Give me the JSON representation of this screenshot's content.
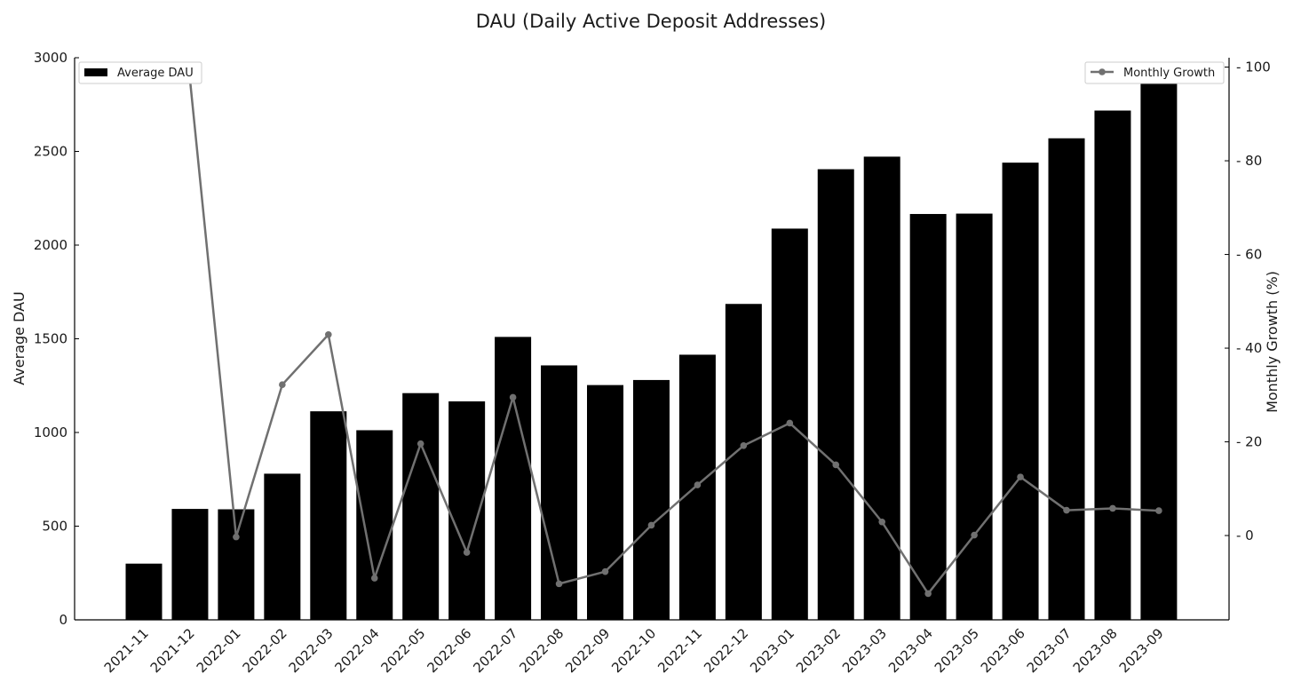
{
  "chart_data": {
    "type": "bar",
    "title": "DAU (Daily Active Deposit Addresses)",
    "categories": [
      "2021-11",
      "2021-12",
      "2022-01",
      "2022-02",
      "2022-03",
      "2022-04",
      "2022-05",
      "2022-06",
      "2022-07",
      "2022-08",
      "2022-09",
      "2022-10",
      "2022-11",
      "2022-12",
      "2023-01",
      "2023-02",
      "2023-03",
      "2023-04",
      "2023-05",
      "2023-06",
      "2023-07",
      "2023-08",
      "2023-09"
    ],
    "ylabel": "Average DAU",
    "y2label": "Monthly Growth (%)",
    "ylim": [
      0,
      3000
    ],
    "y2lim": [
      -18,
      102
    ],
    "yticks": [
      0,
      500,
      1000,
      1500,
      2000,
      2500,
      3000
    ],
    "y2ticks": [
      0,
      20,
      40,
      60,
      80,
      100
    ],
    "series": [
      {
        "name": "Average DAU",
        "type": "bar",
        "axis": "left",
        "color": "#000000",
        "values": [
          300,
          592,
          590,
          780,
          1113,
          1012,
          1210,
          1166,
          1510,
          1358,
          1253,
          1280,
          1415,
          1686,
          2088,
          2405,
          2472,
          2166,
          2168,
          2440,
          2570,
          2718,
          2862
        ]
      },
      {
        "name": "Monthly Growth",
        "type": "line",
        "axis": "right",
        "color": "#707070",
        "marker": "circle",
        "values": [
          null,
          97.3,
          -0.3,
          32.2,
          42.9,
          -9.1,
          19.6,
          -3.6,
          29.5,
          -10.3,
          -7.7,
          2.2,
          10.8,
          19.2,
          24.0,
          15.1,
          2.9,
          -12.4,
          0.1,
          12.5,
          5.4,
          5.8,
          5.3
        ]
      }
    ],
    "legends": [
      {
        "label": "Average DAU",
        "placement": "top-left"
      },
      {
        "label": "Monthly Growth",
        "placement": "top-right"
      }
    ],
    "grid": false
  }
}
